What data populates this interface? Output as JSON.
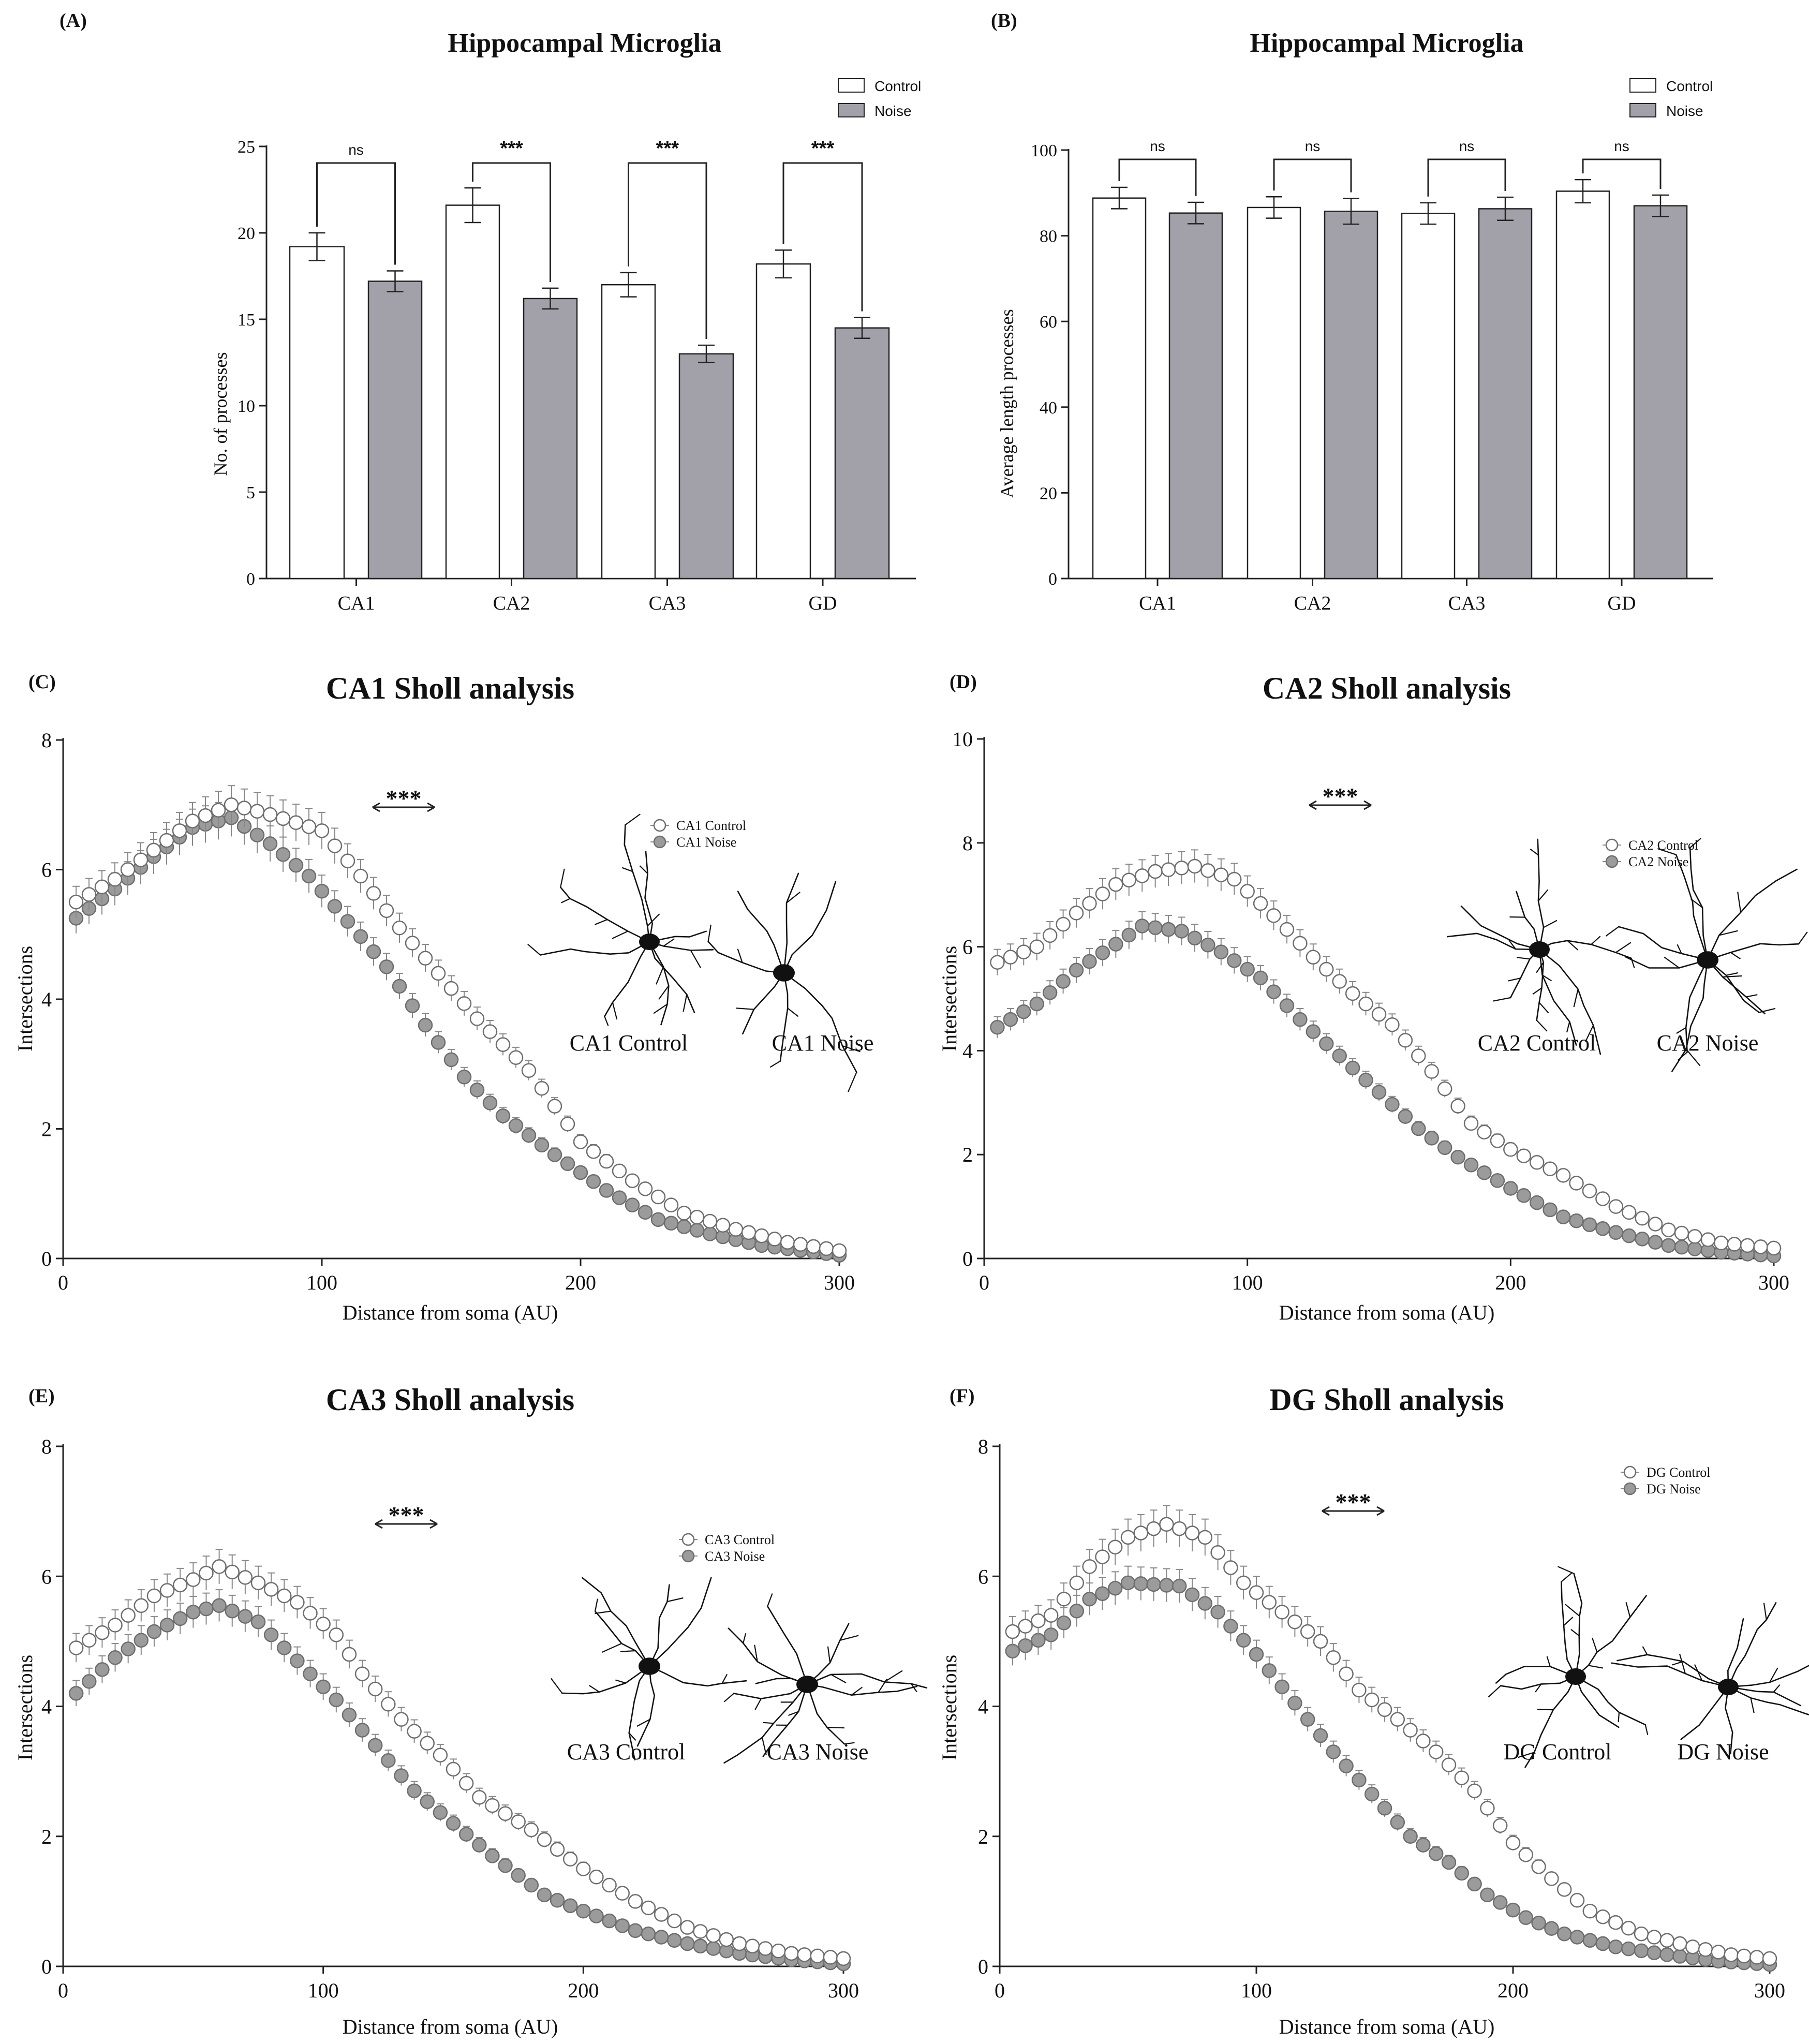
{
  "colors": {
    "control_fill": "#ffffff",
    "noise_fill": "#a2a0a8",
    "axis": "#222222",
    "marker_edge": "#6e6e6e",
    "noise_marker": "#9b9b9b",
    "cell": "#111111"
  },
  "chart_data": [
    {
      "type": "bar",
      "panel_label": "(A)",
      "title": "Hippocampal Microglia",
      "xlabel": "",
      "ylabel": "No. of processes",
      "ylim": [
        0,
        25
      ],
      "yticks": [
        0,
        5,
        10,
        15,
        20,
        25
      ],
      "categories": [
        "CA1",
        "CA2",
        "CA3",
        "GD"
      ],
      "series": [
        {
          "name": "Control",
          "values": [
            19.2,
            21.6,
            17.0,
            18.2
          ],
          "errors": [
            0.8,
            1.0,
            0.7,
            0.8
          ]
        },
        {
          "name": "Noise",
          "values": [
            17.2,
            16.2,
            13.0,
            14.5
          ],
          "errors": [
            0.6,
            0.6,
            0.5,
            0.6
          ]
        }
      ],
      "significance": [
        "ns",
        "***",
        "***",
        "***"
      ],
      "legend": [
        "Control",
        "Noise"
      ],
      "legend_position": "top-right"
    },
    {
      "type": "bar",
      "panel_label": "(B)",
      "title": "Hippocampal Microglia",
      "xlabel": "",
      "ylabel": "Average length processes",
      "ylim": [
        0,
        100
      ],
      "yticks": [
        0,
        20,
        40,
        60,
        80,
        100
      ],
      "categories": [
        "CA1",
        "CA2",
        "CA3",
        "GD"
      ],
      "series": [
        {
          "name": "Control",
          "values": [
            88.8,
            86.6,
            85.2,
            90.4
          ],
          "errors": [
            2.5,
            2.5,
            2.5,
            2.7
          ]
        },
        {
          "name": "Noise",
          "values": [
            85.3,
            85.7,
            86.3,
            87.0
          ],
          "errors": [
            2.5,
            3.0,
            2.7,
            2.5
          ]
        }
      ],
      "significance": [
        "ns",
        "ns",
        "ns",
        "ns"
      ],
      "legend": [
        "Control",
        "Noise"
      ],
      "legend_position": "top-right"
    },
    {
      "type": "scatter",
      "panel_label": "(C)",
      "title": "CA1 Sholl analysis",
      "xlabel": "Distance from soma (AU)",
      "ylabel": "Intersections",
      "xlim": [
        0,
        300
      ],
      "ylim": [
        0,
        8
      ],
      "xticks": [
        0,
        100,
        200,
        300
      ],
      "yticks": [
        0,
        2,
        4,
        6,
        8
      ],
      "x_step": 5,
      "significance": "***",
      "legend": [
        "CA1 Control",
        "CA1 Noise"
      ],
      "cell_labels": [
        "CA1 Control",
        "CA1 Noise"
      ],
      "series": [
        {
          "name": "CA1 Control",
          "anchors": [
            [
              5,
              5.5
            ],
            [
              20,
              5.85
            ],
            [
              35,
              6.3
            ],
            [
              50,
              6.75
            ],
            [
              65,
              7.0
            ],
            [
              80,
              6.85
            ],
            [
              100,
              6.6
            ],
            [
              115,
              5.9
            ],
            [
              130,
              5.1
            ],
            [
              145,
              4.4
            ],
            [
              160,
              3.7
            ],
            [
              180,
              2.9
            ],
            [
              200,
              1.8
            ],
            [
              220,
              1.2
            ],
            [
              240,
              0.7
            ],
            [
              260,
              0.45
            ],
            [
              280,
              0.25
            ],
            [
              300,
              0.12
            ]
          ]
        },
        {
          "name": "CA1 Noise",
          "anchors": [
            [
              5,
              5.25
            ],
            [
              20,
              5.7
            ],
            [
              35,
              6.2
            ],
            [
              50,
              6.65
            ],
            [
              65,
              6.8
            ],
            [
              80,
              6.4
            ],
            [
              95,
              5.9
            ],
            [
              110,
              5.2
            ],
            [
              125,
              4.5
            ],
            [
              140,
              3.6
            ],
            [
              155,
              2.8
            ],
            [
              170,
              2.2
            ],
            [
              190,
              1.6
            ],
            [
              210,
              1.05
            ],
            [
              230,
              0.6
            ],
            [
              250,
              0.38
            ],
            [
              270,
              0.2
            ],
            [
              300,
              0.05
            ]
          ]
        }
      ]
    },
    {
      "type": "scatter",
      "panel_label": "(D)",
      "title": "CA2 Sholl analysis",
      "xlabel": "Distance from soma (AU)",
      "ylabel": "Intersections",
      "xlim": [
        0,
        300
      ],
      "ylim": [
        0,
        10
      ],
      "xticks": [
        0,
        100,
        200,
        300
      ],
      "yticks": [
        0,
        2,
        4,
        6,
        8,
        10
      ],
      "x_step": 5,
      "significance": "***",
      "legend": [
        "CA2 Control",
        "CA2 Noise"
      ],
      "cell_labels": [
        "CA2 Control",
        "CA2 Noise"
      ],
      "series": [
        {
          "name": "CA2 Control",
          "anchors": [
            [
              5,
              5.7
            ],
            [
              20,
              6.0
            ],
            [
              35,
              6.65
            ],
            [
              50,
              7.2
            ],
            [
              65,
              7.45
            ],
            [
              80,
              7.55
            ],
            [
              95,
              7.3
            ],
            [
              110,
              6.6
            ],
            [
              125,
              5.8
            ],
            [
              140,
              5.1
            ],
            [
              155,
              4.5
            ],
            [
              170,
              3.6
            ],
            [
              185,
              2.6
            ],
            [
              200,
              2.1
            ],
            [
              220,
              1.6
            ],
            [
              240,
              1.0
            ],
            [
              260,
              0.55
            ],
            [
              280,
              0.3
            ],
            [
              300,
              0.2
            ]
          ]
        },
        {
          "name": "CA2 Noise",
          "anchors": [
            [
              5,
              4.45
            ],
            [
              20,
              4.9
            ],
            [
              35,
              5.55
            ],
            [
              50,
              6.05
            ],
            [
              60,
              6.4
            ],
            [
              75,
              6.3
            ],
            [
              90,
              5.9
            ],
            [
              105,
              5.4
            ],
            [
              120,
              4.6
            ],
            [
              135,
              3.9
            ],
            [
              150,
              3.2
            ],
            [
              165,
              2.5
            ],
            [
              180,
              1.95
            ],
            [
              200,
              1.35
            ],
            [
              220,
              0.8
            ],
            [
              240,
              0.5
            ],
            [
              260,
              0.25
            ],
            [
              280,
              0.12
            ],
            [
              300,
              0.05
            ]
          ]
        }
      ]
    },
    {
      "type": "scatter",
      "panel_label": "(E)",
      "title": "CA3 Sholl analysis",
      "xlabel": "Distance from soma (AU)",
      "ylabel": "Intersections",
      "xlim": [
        0,
        300
      ],
      "ylim": [
        0,
        8
      ],
      "xticks": [
        0,
        100,
        200,
        300
      ],
      "yticks": [
        0,
        2,
        4,
        6,
        8
      ],
      "x_step": 5,
      "significance": "***",
      "legend": [
        "CA3 Control",
        "CA3 Noise"
      ],
      "cell_labels": [
        "CA3 Control",
        "CA3 Noise"
      ],
      "series": [
        {
          "name": "CA3 Control",
          "anchors": [
            [
              5,
              4.9
            ],
            [
              20,
              5.25
            ],
            [
              35,
              5.7
            ],
            [
              50,
              5.95
            ],
            [
              60,
              6.15
            ],
            [
              75,
              5.9
            ],
            [
              90,
              5.6
            ],
            [
              105,
              5.1
            ],
            [
              115,
              4.5
            ],
            [
              130,
              3.8
            ],
            [
              145,
              3.25
            ],
            [
              160,
              2.6
            ],
            [
              180,
              2.1
            ],
            [
              200,
              1.5
            ],
            [
              220,
              1.0
            ],
            [
              240,
              0.6
            ],
            [
              260,
              0.35
            ],
            [
              280,
              0.2
            ],
            [
              300,
              0.12
            ]
          ]
        },
        {
          "name": "CA3 Noise",
          "anchors": [
            [
              5,
              4.2
            ],
            [
              20,
              4.75
            ],
            [
              35,
              5.15
            ],
            [
              50,
              5.45
            ],
            [
              60,
              5.55
            ],
            [
              75,
              5.3
            ],
            [
              90,
              4.7
            ],
            [
              105,
              4.1
            ],
            [
              120,
              3.4
            ],
            [
              135,
              2.7
            ],
            [
              150,
              2.2
            ],
            [
              165,
              1.7
            ],
            [
              185,
              1.1
            ],
            [
              200,
              0.85
            ],
            [
              220,
              0.55
            ],
            [
              240,
              0.35
            ],
            [
              260,
              0.2
            ],
            [
              280,
              0.1
            ],
            [
              300,
              0.04
            ]
          ]
        }
      ]
    },
    {
      "type": "scatter",
      "panel_label": "(F)",
      "title": "DG Sholl analysis",
      "xlabel": "Distance from soma (AU)",
      "ylabel": "Intersections",
      "xlim": [
        0,
        300
      ],
      "ylim": [
        0,
        8
      ],
      "xticks": [
        0,
        100,
        200,
        300
      ],
      "yticks": [
        0,
        2,
        4,
        6,
        8
      ],
      "x_step": 5,
      "significance": "***",
      "legend": [
        "DG Control",
        "DG Noise"
      ],
      "cell_labels": [
        "DG Control",
        "DG Noise"
      ],
      "series": [
        {
          "name": "DG Control",
          "anchors": [
            [
              5,
              5.15
            ],
            [
              20,
              5.4
            ],
            [
              35,
              6.15
            ],
            [
              50,
              6.6
            ],
            [
              65,
              6.8
            ],
            [
              80,
              6.6
            ],
            [
              95,
              5.9
            ],
            [
              110,
              5.45
            ],
            [
              125,
              5.0
            ],
            [
              140,
              4.25
            ],
            [
              155,
              3.8
            ],
            [
              170,
              3.3
            ],
            [
              185,
              2.7
            ],
            [
              200,
              1.9
            ],
            [
              215,
              1.35
            ],
            [
              230,
              0.85
            ],
            [
              250,
              0.5
            ],
            [
              270,
              0.3
            ],
            [
              285,
              0.18
            ],
            [
              300,
              0.12
            ]
          ]
        },
        {
          "name": "DG Noise",
          "anchors": [
            [
              5,
              4.85
            ],
            [
              20,
              5.1
            ],
            [
              35,
              5.65
            ],
            [
              50,
              5.9
            ],
            [
              70,
              5.85
            ],
            [
              85,
              5.45
            ],
            [
              100,
              4.8
            ],
            [
              115,
              4.05
            ],
            [
              130,
              3.3
            ],
            [
              145,
              2.65
            ],
            [
              160,
              2.0
            ],
            [
              175,
              1.6
            ],
            [
              190,
              1.1
            ],
            [
              205,
              0.75
            ],
            [
              220,
              0.5
            ],
            [
              240,
              0.3
            ],
            [
              260,
              0.18
            ],
            [
              280,
              0.08
            ],
            [
              300,
              0.03
            ]
          ]
        }
      ]
    }
  ]
}
